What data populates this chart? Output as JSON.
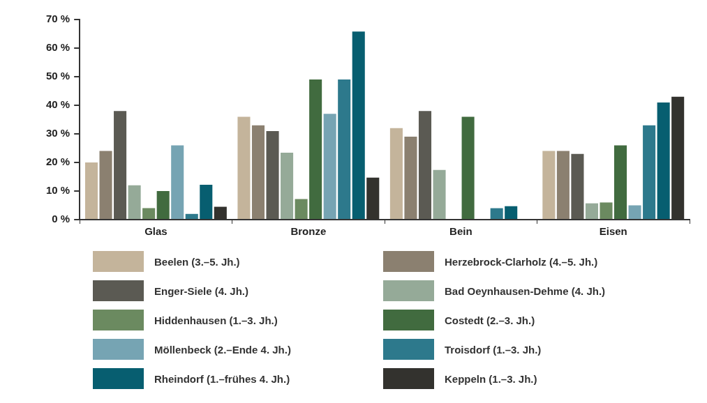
{
  "chart_data": {
    "type": "bar",
    "categories": [
      "Glas",
      "Bronze",
      "Bein",
      "Eisen"
    ],
    "series": [
      {
        "name": "Beelen (3.–5. Jh.)",
        "color": "#c4b49b",
        "values": [
          20,
          36,
          32,
          24
        ]
      },
      {
        "name": "Herzebrock-Clarholz (4.–5. Jh.)",
        "color": "#8b8070",
        "values": [
          24,
          33,
          29,
          24
        ]
      },
      {
        "name": "Enger-Siele (4. Jh.)",
        "color": "#5b5a53",
        "values": [
          38,
          31,
          38,
          23
        ]
      },
      {
        "name": "Bad Oeynhausen-Dehme (4. Jh.)",
        "color": "#95aa98",
        "values": [
          12,
          23.4,
          17.4,
          5.7
        ]
      },
      {
        "name": "Hiddenhausen (1.–3. Jh.)",
        "color": "#6b8a60",
        "values": [
          4,
          7.2,
          0,
          6
        ]
      },
      {
        "name": "Costedt (2.–3. Jh.)",
        "color": "#416b3f",
        "values": [
          10,
          49,
          36,
          26
        ]
      },
      {
        "name": "Möllenbeck (2.–Ende 4. Jh.)",
        "color": "#76a4b3",
        "values": [
          26,
          37,
          0,
          5
        ]
      },
      {
        "name": "Troisdorf (1.–3. Jh.)",
        "color": "#2d798c",
        "values": [
          2,
          49,
          4,
          33
        ]
      },
      {
        "name": "Rheindorf (1.–frühes 4. Jh.)",
        "color": "#075e70",
        "values": [
          12.2,
          65.8,
          4.7,
          41
        ]
      },
      {
        "name": "Keppeln (1.–3. Jh.)",
        "color": "#33322e",
        "values": [
          4.5,
          14.7,
          0,
          43
        ]
      }
    ],
    "ylim": [
      0,
      70
    ],
    "yticks": [
      {
        "value": 0,
        "label": "0 %"
      },
      {
        "value": 10,
        "label": "10 %"
      },
      {
        "value": 20,
        "label": "20 %"
      },
      {
        "value": 30,
        "label": "30 %"
      },
      {
        "value": 40,
        "label": "40 %"
      },
      {
        "value": 50,
        "label": "50 %"
      },
      {
        "value": 60,
        "label": "60 %"
      },
      {
        "value": 70,
        "label": "70 %"
      }
    ],
    "grid": false,
    "legend": "bottom"
  }
}
